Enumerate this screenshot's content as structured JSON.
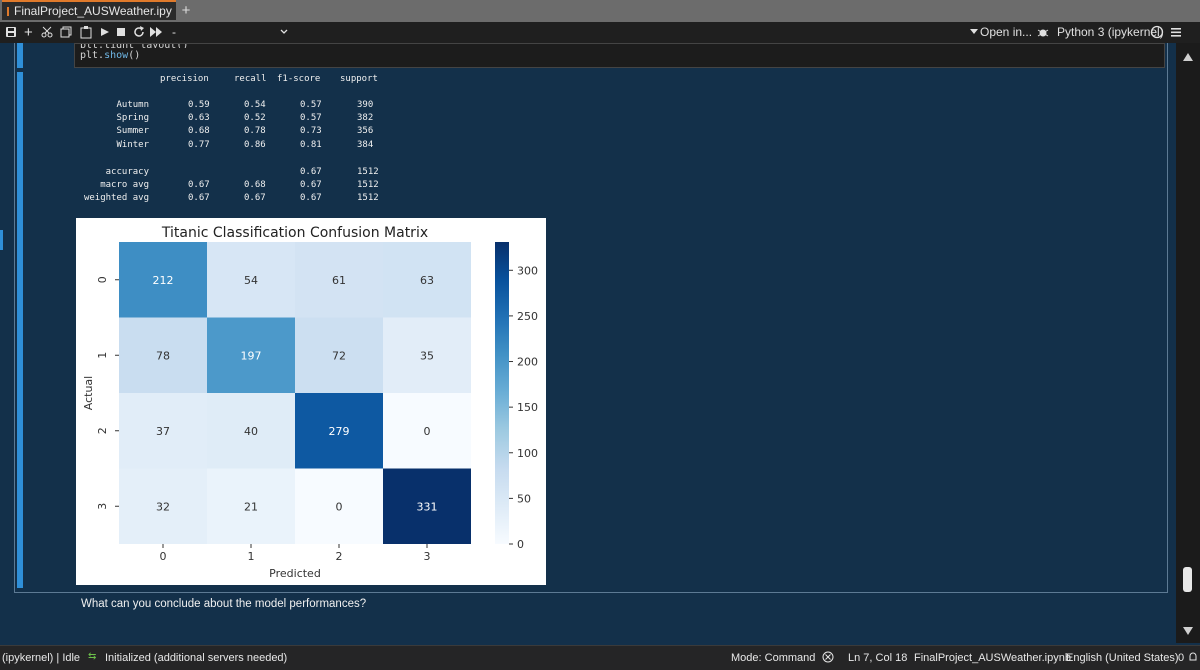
{
  "tab": {
    "title": "FinalProject_AUSWeather.ipy",
    "new_tab": "+"
  },
  "toolbar": {
    "cell_type": "-",
    "open_in": "Open in...",
    "kernel": "Python 3 (ipykernel)"
  },
  "code": {
    "line1": "plt.tight_layout()",
    "line2_obj": "plt.",
    "line2_fn": "show",
    "line2_end": "()"
  },
  "report": {
    "headers": [
      "precision",
      "recall",
      "f1-score",
      "support"
    ],
    "rows": [
      {
        "label": "Autumn",
        "precision": "0.59",
        "recall": "0.54",
        "f1": "0.57",
        "support": "390"
      },
      {
        "label": "Spring",
        "precision": "0.63",
        "recall": "0.52",
        "f1": "0.57",
        "support": "382"
      },
      {
        "label": "Summer",
        "precision": "0.68",
        "recall": "0.78",
        "f1": "0.73",
        "support": "356"
      },
      {
        "label": "Winter",
        "precision": "0.77",
        "recall": "0.86",
        "f1": "0.81",
        "support": "384"
      }
    ],
    "summary": [
      {
        "label": "accuracy",
        "precision": "",
        "recall": "",
        "f1": "0.67",
        "support": "1512"
      },
      {
        "label": "macro avg",
        "precision": "0.67",
        "recall": "0.68",
        "f1": "0.67",
        "support": "1512"
      },
      {
        "label": "weighted avg",
        "precision": "0.67",
        "recall": "0.67",
        "f1": "0.67",
        "support": "1512"
      }
    ]
  },
  "chart_data": {
    "type": "heatmap",
    "title": "Titanic Classification Confusion Matrix",
    "xlabel": "Predicted",
    "ylabel": "Actual",
    "x_ticks": [
      "0",
      "1",
      "2",
      "3"
    ],
    "y_ticks": [
      "0",
      "1",
      "2",
      "3"
    ],
    "matrix": [
      [
        212,
        54,
        61,
        63
      ],
      [
        78,
        197,
        72,
        35
      ],
      [
        37,
        40,
        279,
        0
      ],
      [
        32,
        21,
        0,
        331
      ]
    ],
    "colormap": "Blues",
    "colorbar_ticks": [
      0,
      50,
      100,
      150,
      200,
      250,
      300
    ],
    "colorbar_range": [
      0,
      331
    ]
  },
  "markdown": {
    "question": "What can you conclude about the model performances?"
  },
  "status": {
    "kernel_state": "(ipykernel) | Idle",
    "lsp": "Initialized (additional servers needed)",
    "mode": "Mode: Command",
    "position": "Ln 7, Col 18",
    "file": "FinalProject_AUSWeather.ipynb",
    "language": "English (United States)",
    "count": "0"
  }
}
